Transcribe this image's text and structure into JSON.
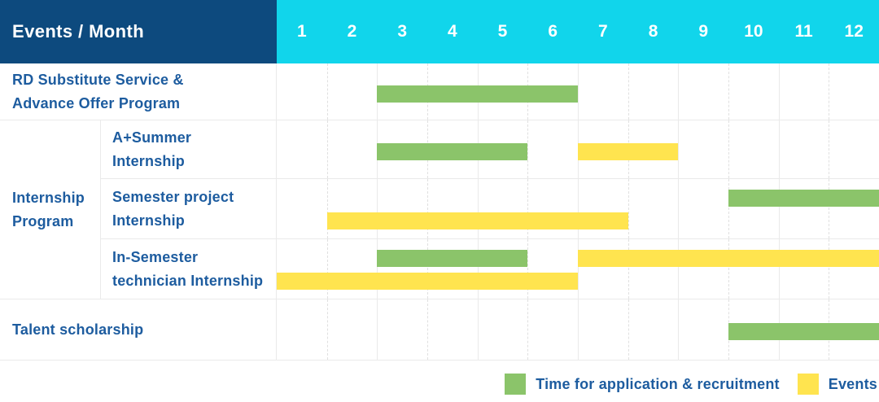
{
  "header": {
    "title": "Events / Month",
    "months": [
      "1",
      "2",
      "3",
      "4",
      "5",
      "6",
      "7",
      "8",
      "9",
      "10",
      "11",
      "12"
    ]
  },
  "group_column": {
    "line1": "Internship",
    "line2": "Program"
  },
  "colors": {
    "navy": "#0d4a7e",
    "cyan": "#11d5eb",
    "application": "#8bc46a",
    "event": "#ffe44f",
    "text_blue": "#1d5c9f"
  },
  "legend": {
    "items": [
      {
        "type": "application",
        "label": "Time for application & recruitment"
      },
      {
        "type": "event",
        "label": "Events"
      }
    ]
  },
  "chart_data": {
    "type": "gantt",
    "unit": "month",
    "x_domain": [
      1,
      12
    ],
    "x_ticks": [
      "1",
      "2",
      "3",
      "4",
      "5",
      "6",
      "7",
      "8",
      "9",
      "10",
      "11",
      "12"
    ],
    "legend": {
      "application": {
        "label": "Time for application & recruitment",
        "color": "#8bc46a"
      },
      "event": {
        "label": "Events",
        "color": "#ffe44f"
      }
    },
    "rows": [
      {
        "group": null,
        "label": "RD Substitute Service & Advance Offer Program",
        "label_lines": [
          "RD Substitute Service &",
          "Advance Offer Program"
        ],
        "bars": [
          {
            "type": "application",
            "start_month": 3,
            "end_month": 6,
            "lane": "single"
          }
        ]
      },
      {
        "group": "Internship Program",
        "label": "A+Summer Internship",
        "label_lines": [
          "A+Summer",
          "Internship"
        ],
        "bars": [
          {
            "type": "application",
            "start_month": 3,
            "end_month": 5,
            "lane": "single"
          },
          {
            "type": "event",
            "start_month": 7,
            "end_month": 8,
            "lane": "single"
          }
        ]
      },
      {
        "group": "Internship Program",
        "label": "Semester project Internship",
        "label_lines": [
          "Semester project",
          "Internship"
        ],
        "bars": [
          {
            "type": "application",
            "start_month": 10,
            "end_month": 12,
            "lane": "top"
          },
          {
            "type": "event",
            "start_month": 2,
            "end_month": 7,
            "lane": "bottom"
          }
        ]
      },
      {
        "group": "Internship Program",
        "label": "In-Semester technician Internship",
        "label_lines": [
          "In-Semester",
          "technician Internship"
        ],
        "bars": [
          {
            "type": "application",
            "start_month": 3,
            "end_month": 5,
            "lane": "top"
          },
          {
            "type": "event",
            "start_month": 7,
            "end_month": 12,
            "lane": "top"
          },
          {
            "type": "event",
            "start_month": 1,
            "end_month": 6,
            "lane": "bottom"
          }
        ]
      },
      {
        "group": null,
        "label": "Talent scholarship",
        "label_lines": [
          "Talent scholarship"
        ],
        "bars": [
          {
            "type": "application",
            "start_month": 10,
            "end_month": 12,
            "lane": "single"
          }
        ]
      }
    ]
  }
}
